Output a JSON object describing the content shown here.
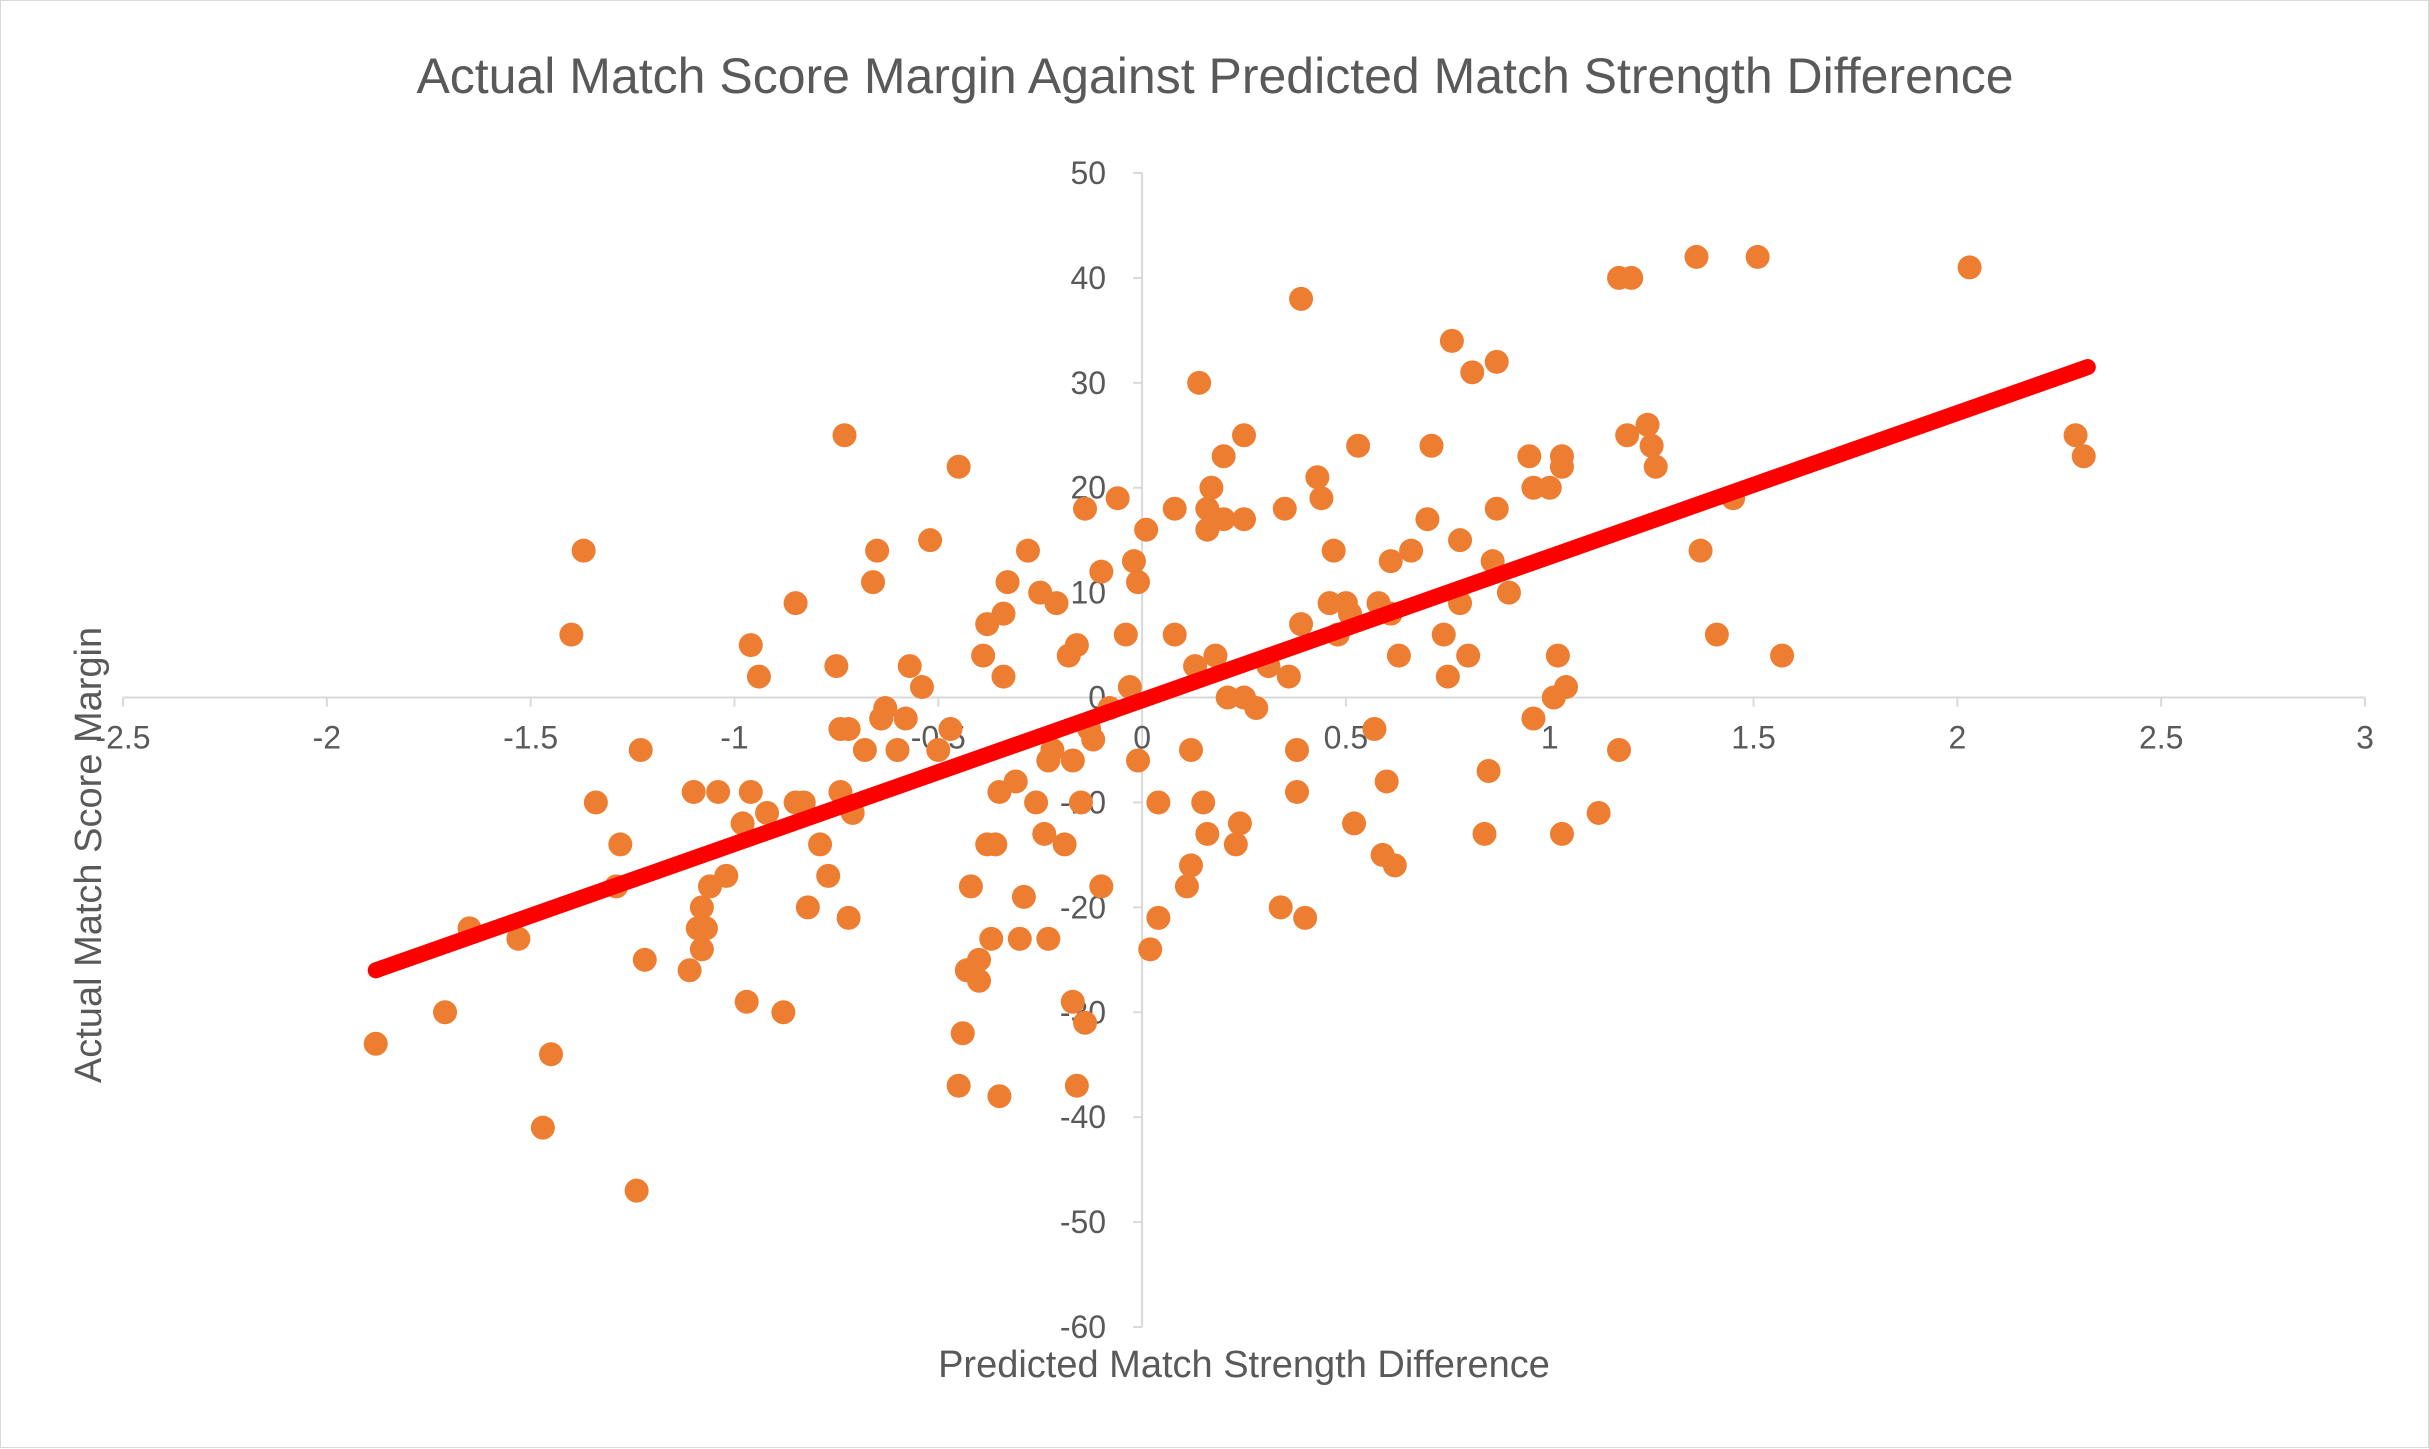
{
  "chart_data": {
    "type": "scatter",
    "title": "Actual Match Score Margin Against Predicted Match Strength Difference",
    "xlabel": "Predicted Match Strength Difference",
    "ylabel": "Actual Match Score Margin",
    "xlim": [
      -2.5,
      3
    ],
    "ylim": [
      -60,
      50
    ],
    "x_ticks": [
      -2.5,
      -2,
      -1.5,
      -1,
      -0.5,
      0,
      0.5,
      1,
      1.5,
      2,
      2.5,
      3
    ],
    "x_tick_labels": [
      "-2.5",
      "-2",
      "-1.5",
      "-1",
      "-0.5",
      "0",
      "0.5",
      "1",
      "1.5",
      "2",
      "2.5",
      "3"
    ],
    "y_ticks": [
      50,
      40,
      30,
      20,
      10,
      0,
      -10,
      -20,
      -30,
      -40,
      -50,
      -60
    ],
    "y_tick_labels": [
      "50",
      "40",
      "30",
      "20",
      "10",
      "0",
      "-10",
      "-20",
      "-30",
      "-40",
      "-50",
      "-60"
    ],
    "grid": false,
    "legend": "none",
    "colors": {
      "points": "#ED7D31",
      "trendline": "#FF0000",
      "axis": "#d9d9d9",
      "text": "#595959"
    },
    "trendline": {
      "type": "linear",
      "x": [
        -1.88,
        2.32
      ],
      "y": [
        -26,
        31.5
      ]
    },
    "points": [
      [
        -1.88,
        -33
      ],
      [
        -1.71,
        -30
      ],
      [
        -1.65,
        -22
      ],
      [
        -1.53,
        -23
      ],
      [
        -1.47,
        -41
      ],
      [
        -1.45,
        -34
      ],
      [
        -1.4,
        6
      ],
      [
        -1.37,
        14
      ],
      [
        -1.34,
        -10
      ],
      [
        -1.29,
        -18
      ],
      [
        -1.28,
        -14
      ],
      [
        -1.24,
        -47
      ],
      [
        -1.23,
        -5
      ],
      [
        -1.22,
        -25
      ],
      [
        -1.11,
        -26
      ],
      [
        -1.1,
        -9
      ],
      [
        -1.09,
        -22
      ],
      [
        -1.08,
        -20
      ],
      [
        -1.08,
        -24
      ],
      [
        -1.07,
        -22
      ],
      [
        -1.06,
        -18
      ],
      [
        -1.04,
        -9
      ],
      [
        -1.02,
        -17
      ],
      [
        -0.98,
        -12
      ],
      [
        -0.97,
        -29
      ],
      [
        -0.96,
        5
      ],
      [
        -0.96,
        -9
      ],
      [
        -0.94,
        2
      ],
      [
        -0.92,
        -11
      ],
      [
        -0.88,
        -30
      ],
      [
        -0.85,
        9
      ],
      [
        -0.85,
        -10
      ],
      [
        -0.83,
        -10
      ],
      [
        -0.82,
        -20
      ],
      [
        -0.79,
        -14
      ],
      [
        -0.77,
        -17
      ],
      [
        -0.75,
        3
      ],
      [
        -0.74,
        -3
      ],
      [
        -0.74,
        -9
      ],
      [
        -0.73,
        25
      ],
      [
        -0.72,
        -21
      ],
      [
        -0.72,
        -3
      ],
      [
        -0.71,
        -11
      ],
      [
        -0.68,
        -5
      ],
      [
        -0.66,
        11
      ],
      [
        -0.65,
        14
      ],
      [
        -0.64,
        -2
      ],
      [
        -0.63,
        -1
      ],
      [
        -0.6,
        -5
      ],
      [
        -0.58,
        -2
      ],
      [
        -0.57,
        3
      ],
      [
        -0.54,
        1
      ],
      [
        -0.52,
        15
      ],
      [
        -0.5,
        -5
      ],
      [
        -0.47,
        -3
      ],
      [
        -0.45,
        22
      ],
      [
        -0.45,
        -37
      ],
      [
        -0.44,
        -32
      ],
      [
        -0.43,
        -26
      ],
      [
        -0.42,
        -18
      ],
      [
        -0.4,
        -25
      ],
      [
        -0.4,
        -27
      ],
      [
        -0.39,
        4
      ],
      [
        -0.38,
        7
      ],
      [
        -0.38,
        -14
      ],
      [
        -0.37,
        -23
      ],
      [
        -0.36,
        -14
      ],
      [
        -0.35,
        -9
      ],
      [
        -0.35,
        -38
      ],
      [
        -0.34,
        8
      ],
      [
        -0.34,
        2
      ],
      [
        -0.33,
        11
      ],
      [
        -0.31,
        -8
      ],
      [
        -0.3,
        -23
      ],
      [
        -0.29,
        -19
      ],
      [
        -0.28,
        14
      ],
      [
        -0.26,
        -10
      ],
      [
        -0.25,
        10
      ],
      [
        -0.24,
        -13
      ],
      [
        -0.23,
        -23
      ],
      [
        -0.23,
        -6
      ],
      [
        -0.22,
        -5
      ],
      [
        -0.21,
        9
      ],
      [
        -0.19,
        -14
      ],
      [
        -0.18,
        4
      ],
      [
        -0.17,
        -29
      ],
      [
        -0.17,
        -6
      ],
      [
        -0.16,
        -37
      ],
      [
        -0.16,
        5
      ],
      [
        -0.15,
        -10
      ],
      [
        -0.14,
        -31
      ],
      [
        -0.14,
        18
      ],
      [
        -0.13,
        -3
      ],
      [
        -0.12,
        -4
      ],
      [
        -0.1,
        -18
      ],
      [
        -0.1,
        12
      ],
      [
        -0.08,
        -1
      ],
      [
        -0.06,
        19
      ],
      [
        -0.04,
        6
      ],
      [
        -0.03,
        1
      ],
      [
        -0.02,
        13
      ],
      [
        -0.01,
        -6
      ],
      [
        -0.01,
        11
      ],
      [
        0.01,
        16
      ],
      [
        0.02,
        -24
      ],
      [
        0.04,
        -10
      ],
      [
        0.04,
        -21
      ],
      [
        0.08,
        6
      ],
      [
        0.08,
        18
      ],
      [
        0.11,
        -18
      ],
      [
        0.12,
        -16
      ],
      [
        0.12,
        -5
      ],
      [
        0.13,
        3
      ],
      [
        0.14,
        30
      ],
      [
        0.15,
        -10
      ],
      [
        0.16,
        16
      ],
      [
        0.16,
        -13
      ],
      [
        0.16,
        18
      ],
      [
        0.17,
        20
      ],
      [
        0.18,
        4
      ],
      [
        0.2,
        17
      ],
      [
        0.2,
        23
      ],
      [
        0.21,
        0
      ],
      [
        0.23,
        -14
      ],
      [
        0.24,
        -12
      ],
      [
        0.25,
        25
      ],
      [
        0.25,
        17
      ],
      [
        0.25,
        0
      ],
      [
        0.28,
        -1
      ],
      [
        0.31,
        3
      ],
      [
        0.34,
        -20
      ],
      [
        0.35,
        18
      ],
      [
        0.36,
        2
      ],
      [
        0.38,
        -9
      ],
      [
        0.38,
        -5
      ],
      [
        0.39,
        38
      ],
      [
        0.39,
        7
      ],
      [
        0.4,
        -21
      ],
      [
        0.43,
        21
      ],
      [
        0.44,
        19
      ],
      [
        0.46,
        9
      ],
      [
        0.47,
        14
      ],
      [
        0.48,
        6
      ],
      [
        0.5,
        9
      ],
      [
        0.51,
        8
      ],
      [
        0.52,
        -12
      ],
      [
        0.53,
        24
      ],
      [
        0.57,
        -3
      ],
      [
        0.58,
        9
      ],
      [
        0.59,
        -15
      ],
      [
        0.6,
        -8
      ],
      [
        0.61,
        8
      ],
      [
        0.61,
        13
      ],
      [
        0.62,
        -16
      ],
      [
        0.63,
        4
      ],
      [
        0.66,
        14
      ],
      [
        0.7,
        17
      ],
      [
        0.71,
        24
      ],
      [
        0.74,
        6
      ],
      [
        0.75,
        2
      ],
      [
        0.76,
        34
      ],
      [
        0.78,
        9
      ],
      [
        0.78,
        15
      ],
      [
        0.8,
        4
      ],
      [
        0.81,
        31
      ],
      [
        0.84,
        -13
      ],
      [
        0.85,
        -7
      ],
      [
        0.86,
        13
      ],
      [
        0.87,
        18
      ],
      [
        0.87,
        32
      ],
      [
        0.9,
        10
      ],
      [
        0.95,
        23
      ],
      [
        0.96,
        20
      ],
      [
        0.96,
        -2
      ],
      [
        1.0,
        20
      ],
      [
        1.01,
        0
      ],
      [
        1.02,
        4
      ],
      [
        1.03,
        22
      ],
      [
        1.03,
        23
      ],
      [
        1.03,
        -13
      ],
      [
        1.04,
        1
      ],
      [
        1.12,
        -11
      ],
      [
        1.17,
        -5
      ],
      [
        1.17,
        40
      ],
      [
        1.19,
        25
      ],
      [
        1.2,
        40
      ],
      [
        1.24,
        26
      ],
      [
        1.25,
        24
      ],
      [
        1.26,
        22
      ],
      [
        1.36,
        42
      ],
      [
        1.37,
        14
      ],
      [
        1.41,
        6
      ],
      [
        1.45,
        19
      ],
      [
        1.51,
        42
      ],
      [
        1.57,
        4
      ],
      [
        2.03,
        41
      ],
      [
        2.29,
        25
      ],
      [
        2.31,
        23
      ]
    ]
  }
}
